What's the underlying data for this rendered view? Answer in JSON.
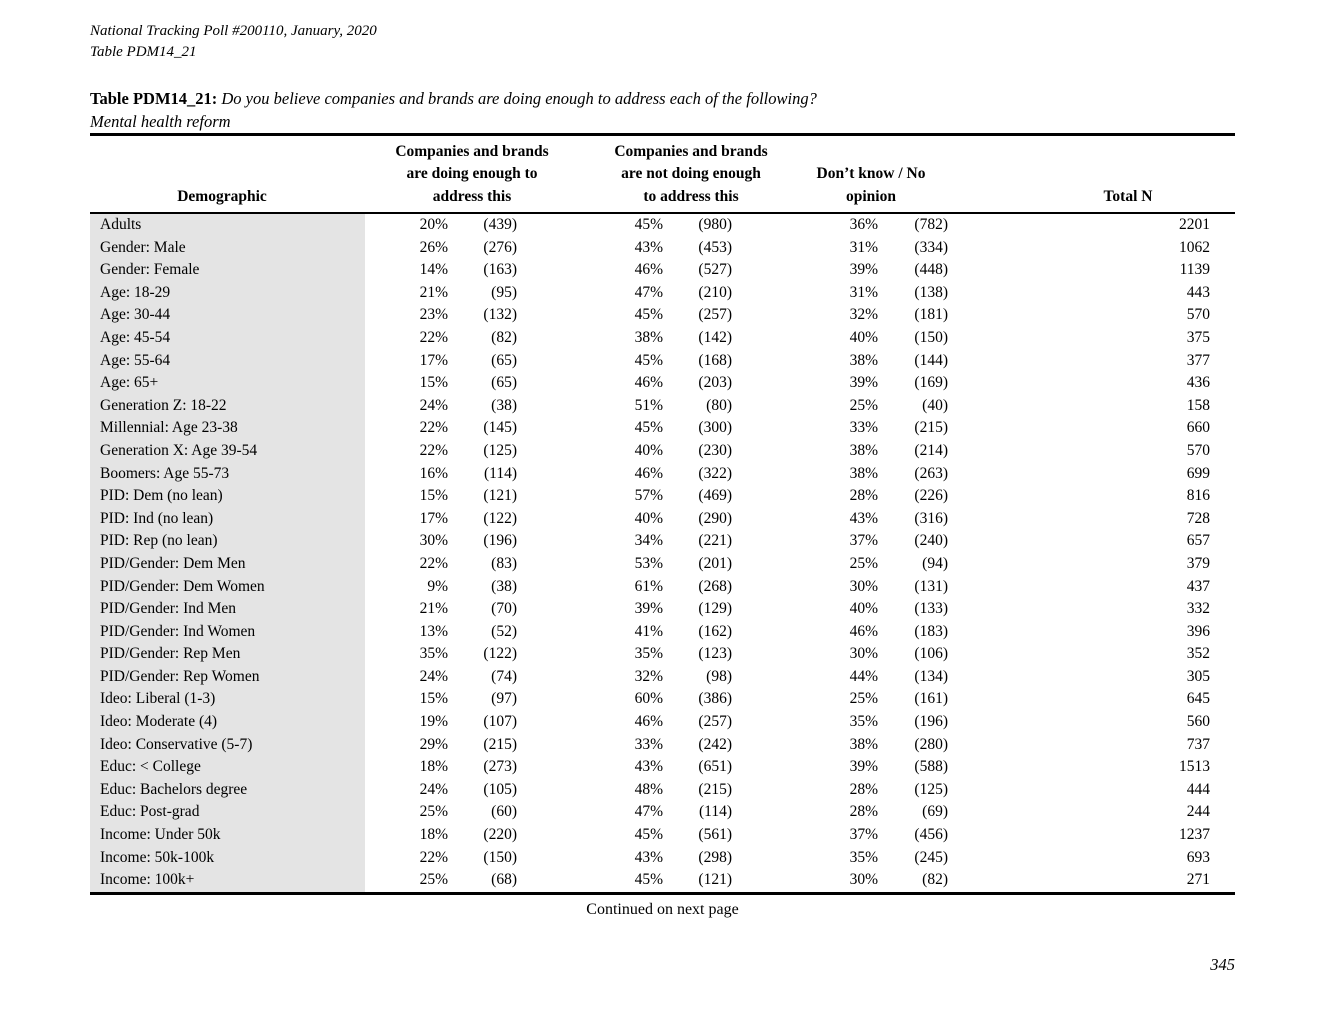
{
  "header": {
    "line1": "National Tracking Poll #200110, January, 2020",
    "line2": "Table PDM14_21"
  },
  "title": {
    "label": "Table PDM14_21:",
    "question": "Do you believe companies and brands are doing enough to address each of the following?",
    "subject": "Mental health reform"
  },
  "table": {
    "headers": {
      "demographic": "Demographic",
      "doing_enough": "Companies and brands\nare doing enough to\naddress this",
      "not_doing_enough": "Companies and brands\nare not doing enough\nto address this",
      "dont_know": "Don’t know / No\nopinion",
      "total_n": "Total N"
    },
    "rows": [
      [
        "Adults",
        "20%",
        "(439)",
        "45%",
        "(980)",
        "36%",
        "(782)",
        "2201"
      ],
      [
        "Gender: Male",
        "26%",
        "(276)",
        "43%",
        "(453)",
        "31%",
        "(334)",
        "1062"
      ],
      [
        "Gender: Female",
        "14%",
        "(163)",
        "46%",
        "(527)",
        "39%",
        "(448)",
        "1139"
      ],
      [
        "Age: 18-29",
        "21%",
        "(95)",
        "47%",
        "(210)",
        "31%",
        "(138)",
        "443"
      ],
      [
        "Age: 30-44",
        "23%",
        "(132)",
        "45%",
        "(257)",
        "32%",
        "(181)",
        "570"
      ],
      [
        "Age: 45-54",
        "22%",
        "(82)",
        "38%",
        "(142)",
        "40%",
        "(150)",
        "375"
      ],
      [
        "Age: 55-64",
        "17%",
        "(65)",
        "45%",
        "(168)",
        "38%",
        "(144)",
        "377"
      ],
      [
        "Age: 65+",
        "15%",
        "(65)",
        "46%",
        "(203)",
        "39%",
        "(169)",
        "436"
      ],
      [
        "Generation Z: 18-22",
        "24%",
        "(38)",
        "51%",
        "(80)",
        "25%",
        "(40)",
        "158"
      ],
      [
        "Millennial: Age 23-38",
        "22%",
        "(145)",
        "45%",
        "(300)",
        "33%",
        "(215)",
        "660"
      ],
      [
        "Generation X: Age 39-54",
        "22%",
        "(125)",
        "40%",
        "(230)",
        "38%",
        "(214)",
        "570"
      ],
      [
        "Boomers: Age 55-73",
        "16%",
        "(114)",
        "46%",
        "(322)",
        "38%",
        "(263)",
        "699"
      ],
      [
        "PID: Dem (no lean)",
        "15%",
        "(121)",
        "57%",
        "(469)",
        "28%",
        "(226)",
        "816"
      ],
      [
        "PID: Ind (no lean)",
        "17%",
        "(122)",
        "40%",
        "(290)",
        "43%",
        "(316)",
        "728"
      ],
      [
        "PID: Rep (no lean)",
        "30%",
        "(196)",
        "34%",
        "(221)",
        "37%",
        "(240)",
        "657"
      ],
      [
        "PID/Gender: Dem Men",
        "22%",
        "(83)",
        "53%",
        "(201)",
        "25%",
        "(94)",
        "379"
      ],
      [
        "PID/Gender: Dem Women",
        "9%",
        "(38)",
        "61%",
        "(268)",
        "30%",
        "(131)",
        "437"
      ],
      [
        "PID/Gender: Ind Men",
        "21%",
        "(70)",
        "39%",
        "(129)",
        "40%",
        "(133)",
        "332"
      ],
      [
        "PID/Gender: Ind Women",
        "13%",
        "(52)",
        "41%",
        "(162)",
        "46%",
        "(183)",
        "396"
      ],
      [
        "PID/Gender: Rep Men",
        "35%",
        "(122)",
        "35%",
        "(123)",
        "30%",
        "(106)",
        "352"
      ],
      [
        "PID/Gender: Rep Women",
        "24%",
        "(74)",
        "32%",
        "(98)",
        "44%",
        "(134)",
        "305"
      ],
      [
        "Ideo: Liberal (1-3)",
        "15%",
        "(97)",
        "60%",
        "(386)",
        "25%",
        "(161)",
        "645"
      ],
      [
        "Ideo: Moderate (4)",
        "19%",
        "(107)",
        "46%",
        "(257)",
        "35%",
        "(196)",
        "560"
      ],
      [
        "Ideo: Conservative (5-7)",
        "29%",
        "(215)",
        "33%",
        "(242)",
        "38%",
        "(280)",
        "737"
      ],
      [
        "Educ: < College",
        "18%",
        "(273)",
        "43%",
        "(651)",
        "39%",
        "(588)",
        "1513"
      ],
      [
        "Educ: Bachelors degree",
        "24%",
        "(105)",
        "48%",
        "(215)",
        "28%",
        "(125)",
        "444"
      ],
      [
        "Educ: Post-grad",
        "25%",
        "(60)",
        "47%",
        "(114)",
        "28%",
        "(69)",
        "244"
      ],
      [
        "Income: Under 50k",
        "18%",
        "(220)",
        "45%",
        "(561)",
        "37%",
        "(456)",
        "1237"
      ],
      [
        "Income: 50k-100k",
        "22%",
        "(150)",
        "43%",
        "(298)",
        "35%",
        "(245)",
        "693"
      ],
      [
        "Income: 100k+",
        "25%",
        "(68)",
        "45%",
        "(121)",
        "30%",
        "(82)",
        "271"
      ]
    ]
  },
  "footer": {
    "continued": "Continued on next page",
    "page_number": "345"
  }
}
